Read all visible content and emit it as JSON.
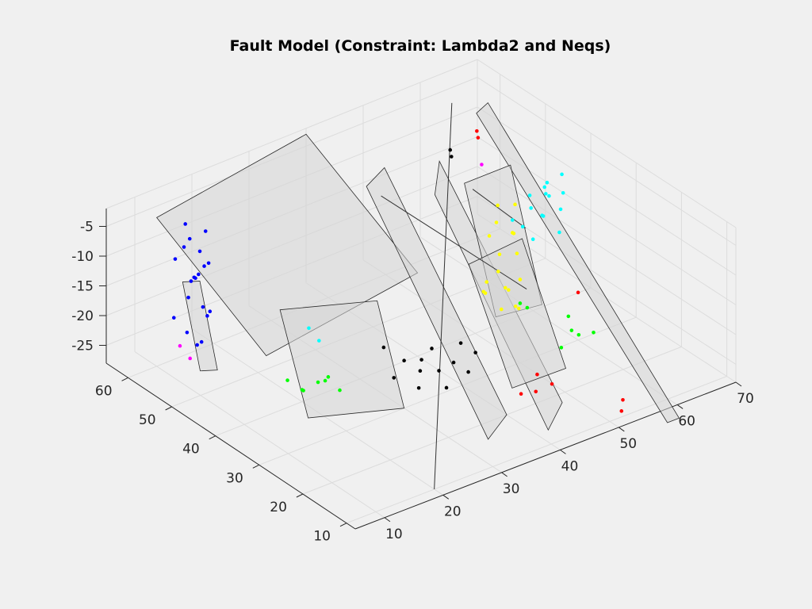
{
  "chart_data": {
    "type": "scatter",
    "title": "Fault Model (Constraint: Lambda2 and Neqs)",
    "xlabel": "",
    "ylabel": "",
    "zlabel": "",
    "xlim": [
      5,
      70
    ],
    "ylim": [
      8,
      65
    ],
    "zlim": [
      -28,
      -2
    ],
    "x_ticks": [
      "10",
      "20",
      "30",
      "40",
      "50",
      "60",
      "70"
    ],
    "y_ticks": [
      "10",
      "20",
      "30",
      "40",
      "50",
      "60"
    ],
    "z_ticks": [
      "-5",
      "-10",
      "-15",
      "-20",
      "-25"
    ],
    "grid": true,
    "view": "3-D perspective",
    "series": [
      {
        "color": "#0000ff",
        "values": [
          [
            15,
            60,
            -6
          ],
          [
            15,
            59,
            -8
          ],
          [
            16,
            58,
            -10
          ],
          [
            14,
            61,
            -12
          ],
          [
            15,
            57,
            -13
          ],
          [
            16,
            59,
            -15
          ],
          [
            14,
            58,
            -17
          ],
          [
            15,
            56,
            -18
          ],
          [
            17,
            57,
            -20
          ],
          [
            13,
            60,
            -21
          ],
          [
            14,
            55,
            -23
          ],
          [
            16,
            56,
            -11
          ],
          [
            15,
            58,
            -14
          ],
          [
            14,
            59,
            -9
          ],
          [
            16,
            60,
            -16
          ],
          [
            15,
            55,
            -19
          ],
          [
            13,
            57,
            -22
          ],
          [
            17,
            58,
            -7
          ],
          [
            14,
            56,
            -24
          ],
          [
            16,
            57,
            -12
          ]
        ]
      },
      {
        "color": "#ffff00",
        "values": [
          [
            50,
            35,
            -4
          ],
          [
            49,
            34,
            -6
          ],
          [
            51,
            33,
            -8
          ],
          [
            48,
            32,
            -10
          ],
          [
            47,
            31,
            -12
          ],
          [
            50,
            30,
            -14
          ],
          [
            46,
            33,
            -16
          ],
          [
            49,
            29,
            -18
          ],
          [
            45,
            31,
            -13
          ],
          [
            52,
            34,
            -9
          ],
          [
            48,
            30,
            -15
          ],
          [
            46,
            29,
            -17
          ],
          [
            51,
            32,
            -11
          ],
          [
            47,
            33,
            -7
          ],
          [
            50,
            31,
            -19
          ],
          [
            44,
            30,
            -14
          ],
          [
            53,
            35,
            -5
          ],
          [
            49,
            32,
            -16
          ]
        ]
      },
      {
        "color": "#00ffff",
        "values": [
          [
            62,
            40,
            -8
          ],
          [
            63,
            41,
            -10
          ],
          [
            61,
            39,
            -12
          ],
          [
            64,
            42,
            -9
          ],
          [
            60,
            38,
            -11
          ],
          [
            62,
            43,
            -13
          ],
          [
            65,
            40,
            -7
          ],
          [
            59,
            41,
            -14
          ],
          [
            63,
            38,
            -15
          ],
          [
            61,
            42,
            -10
          ],
          [
            64,
            39,
            -12
          ],
          [
            60,
            40,
            -16
          ],
          [
            62,
            39,
            -9
          ],
          [
            25,
            45,
            -20
          ],
          [
            26,
            44,
            -22
          ],
          [
            66,
            41,
            -11
          ],
          [
            58,
            42,
            -13
          ]
        ]
      },
      {
        "color": "#000000",
        "values": [
          [
            30,
            30,
            -20
          ],
          [
            32,
            29,
            -22
          ],
          [
            31,
            28,
            -24
          ],
          [
            33,
            30,
            -21
          ],
          [
            29,
            31,
            -23
          ],
          [
            35,
            27,
            -25
          ],
          [
            34,
            29,
            -19
          ],
          [
            37,
            28,
            -22
          ],
          [
            36,
            30,
            -24
          ],
          [
            28,
            32,
            -18
          ],
          [
            38,
            26,
            -23
          ],
          [
            40,
            27,
            -21
          ],
          [
            55,
            52,
            -5
          ],
          [
            56,
            53,
            -7
          ],
          [
            39,
            29,
            -20
          ]
        ]
      },
      {
        "color": "#00ff00",
        "values": [
          [
            20,
            40,
            -26
          ],
          [
            22,
            39,
            -25
          ],
          [
            21,
            41,
            -27
          ],
          [
            23,
            38,
            -24
          ],
          [
            19,
            42,
            -25
          ],
          [
            24,
            40,
            -26
          ],
          [
            55,
            25,
            -22
          ],
          [
            57,
            26,
            -24
          ],
          [
            56,
            27,
            -21
          ],
          [
            58,
            24,
            -23
          ],
          [
            54,
            26,
            -25
          ],
          [
            50,
            30,
            -18
          ],
          [
            52,
            31,
            -20
          ],
          [
            25,
            38,
            -27
          ]
        ]
      },
      {
        "color": "#ff0000",
        "values": [
          [
            62,
            55,
            -6
          ],
          [
            63,
            56,
            -8
          ],
          [
            45,
            20,
            -26
          ],
          [
            46,
            21,
            -24
          ],
          [
            44,
            22,
            -27
          ],
          [
            47,
            19,
            -25
          ],
          [
            52,
            10,
            -27
          ],
          [
            53,
            11,
            -26
          ],
          [
            60,
            30,
            -20
          ]
        ]
      },
      {
        "color": "#ff00ff",
        "values": [
          [
            12,
            55,
            -25
          ],
          [
            11,
            56,
            -23
          ],
          [
            55,
            45,
            -4
          ]
        ]
      }
    ],
    "fault_planes": [
      [
        [
          10,
          60,
          -3
        ],
        [
          40,
          65,
          -3
        ],
        [
          40,
          40,
          -14
        ],
        [
          10,
          35,
          -14
        ]
      ],
      [
        [
          35,
          45,
          0
        ],
        [
          42,
          50,
          -2
        ],
        [
          40,
          20,
          -28
        ],
        [
          33,
          15,
          -27
        ]
      ],
      [
        [
          43,
          40,
          -2
        ],
        [
          50,
          48,
          -3
        ],
        [
          48,
          18,
          -28
        ],
        [
          41,
          12,
          -27
        ]
      ],
      [
        [
          58,
          50,
          1
        ],
        [
          60,
          50,
          2
        ],
        [
          58,
          5,
          -28
        ],
        [
          56,
          5,
          -28
        ]
      ],
      [
        [
          20,
          45,
          -15
        ],
        [
          33,
          40,
          -16
        ],
        [
          30,
          30,
          -28
        ],
        [
          18,
          36,
          -28
        ]
      ],
      [
        [
          52,
          45,
          -6
        ],
        [
          60,
          45,
          -6
        ],
        [
          60,
          38,
          -26
        ],
        [
          52,
          38,
          -25
        ]
      ],
      [
        [
          45,
          35,
          -12
        ],
        [
          55,
          36,
          -12
        ],
        [
          54,
          25,
          -28
        ],
        [
          44,
          24,
          -27
        ]
      ],
      [
        [
          13,
          58,
          -14
        ],
        [
          16,
          58,
          -15
        ],
        [
          16,
          54,
          -28
        ],
        [
          13,
          54,
          -27
        ]
      ]
    ],
    "fault_traces": [
      [
        [
          20,
          10,
          -28
        ],
        [
          60,
          58,
          -2
        ]
      ],
      [
        [
          36,
          43,
          -1
        ],
        [
          55,
          35,
          -20
        ]
      ],
      [
        [
          48,
          38,
          -2
        ],
        [
          65,
          48,
          -20
        ]
      ]
    ]
  }
}
